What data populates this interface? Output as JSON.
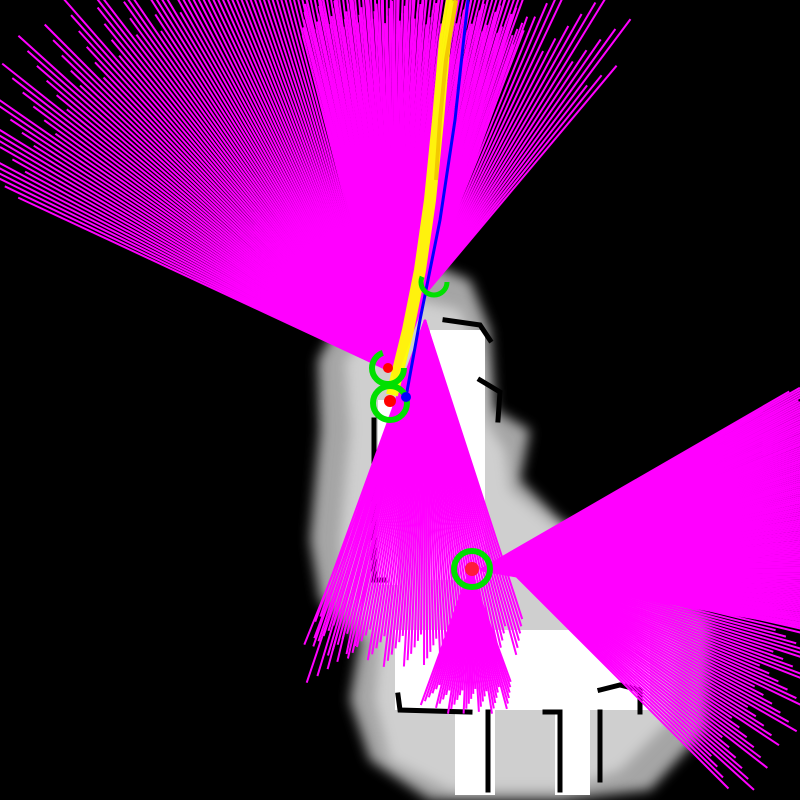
{
  "colors": {
    "background": "#000000",
    "unknown_space": "#000000",
    "inflation_cost": "#9a9a9a",
    "free_space": "#ffffff",
    "obstacle": "#000000",
    "laser_scan": "#ff00ff",
    "global_path": "#ffff00",
    "robot_path": "#0000ff",
    "robot_footprint": "#00e000",
    "robot_pose": "#ff0000",
    "goal_marker": "#0000ff"
  },
  "icons": {
    "laser_scan": "laser-ray-icon",
    "robot": "robot-footprint-icon",
    "pose": "pose-dot-icon",
    "goal": "goal-dot-icon"
  },
  "robots": [
    {
      "id": "robot-a",
      "label": ""
    },
    {
      "id": "robot-b",
      "label": ""
    },
    {
      "id": "robot-c",
      "label": ""
    },
    {
      "id": "robot-d",
      "label": ""
    }
  ]
}
